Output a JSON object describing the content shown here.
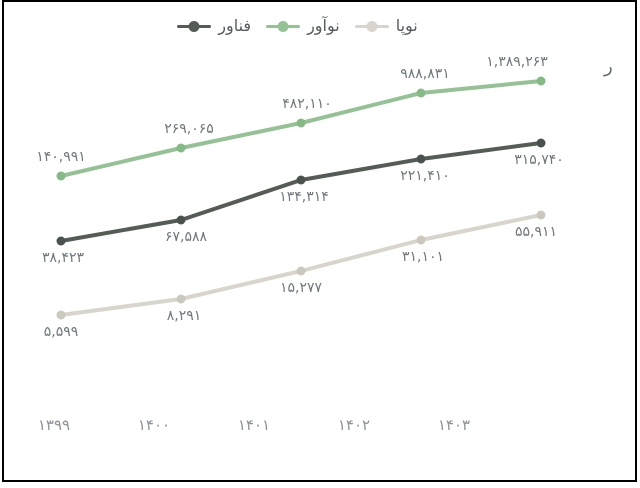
{
  "title_clipped": "ر",
  "legend": {
    "items": [
      {
        "key": "technologist",
        "label": "فناور",
        "color": "#545C56"
      },
      {
        "key": "innovator",
        "label": "نوآور",
        "color": "#95C295"
      },
      {
        "key": "startup",
        "label": "نوپا",
        "color": "#D8D5CC"
      }
    ]
  },
  "chart_data": {
    "type": "line",
    "title": "",
    "categories": [
      "۱۳۹۹",
      "۱۴۰۰",
      "۱۴۰۱",
      "۱۴۰۲",
      "۱۴۰۳"
    ],
    "categories_en": [
      1399,
      1400,
      1401,
      1402,
      1403
    ],
    "series": [
      {
        "key": "innovator",
        "name": "نوآور",
        "color": "#95C295",
        "marker_color": "#85B985",
        "values": [
          140991,
          269065,
          482110,
          988831,
          1389263
        ],
        "labels": [
          "۱۴۰,۹۹۱",
          "۲۶۹,۰۶۵",
          "۴۸۲,۱۱۰",
          "۹۸۸,۸۳۱",
          "۱,۳۸۹,۲۶۳"
        ],
        "label_side": "above",
        "py": [
          174,
          146,
          121,
          91,
          79
        ],
        "label_dx": [
          0,
          8,
          6,
          4,
          -24
        ]
      },
      {
        "key": "technologist",
        "name": "فناور",
        "color": "#555C56",
        "marker_color": "#4A524D",
        "values": [
          38423,
          67588,
          134314,
          221410,
          315740
        ],
        "labels": [
          "۳۸,۴۲۳",
          "۶۷,۵۸۸",
          "۱۳۴,۳۱۴",
          "۲۲۱,۴۱۰",
          "۳۱۵,۷۴۰"
        ],
        "label_side": "below",
        "py": [
          239,
          218,
          178,
          157,
          141
        ],
        "label_dx": [
          2,
          5,
          3,
          4,
          -2
        ]
      },
      {
        "key": "startup",
        "name": "نوپا",
        "color": "#D8D5CC",
        "marker_color": "#CBC8BE",
        "values": [
          5599,
          8291,
          15277,
          31101,
          55911
        ],
        "labels": [
          "۵,۵۹۹",
          "۸,۲۹۱",
          "۱۵,۲۷۷",
          "۳۱,۱۰۱",
          "۵۵,۹۱۱"
        ],
        "label_side": "below",
        "py": [
          313,
          297,
          269,
          238,
          213
        ],
        "label_dx": [
          0,
          3,
          0,
          2,
          -5
        ]
      }
    ],
    "axis": {
      "scale": "log",
      "x_label_y_center": 423
    },
    "layout": {
      "x_points": [
        57,
        177,
        297,
        417,
        537
      ],
      "x_label_centers": [
        50,
        150,
        250,
        350,
        450
      ],
      "x_label_baseline": 428,
      "line_width": 4,
      "marker_radius": 4.5,
      "legend_position": "top-center",
      "grid": false
    },
    "colors": {
      "data_label": "#6F787E",
      "axis_label": "#8C939A",
      "legend_text": "#565C62",
      "frame_border": "#000000"
    }
  }
}
